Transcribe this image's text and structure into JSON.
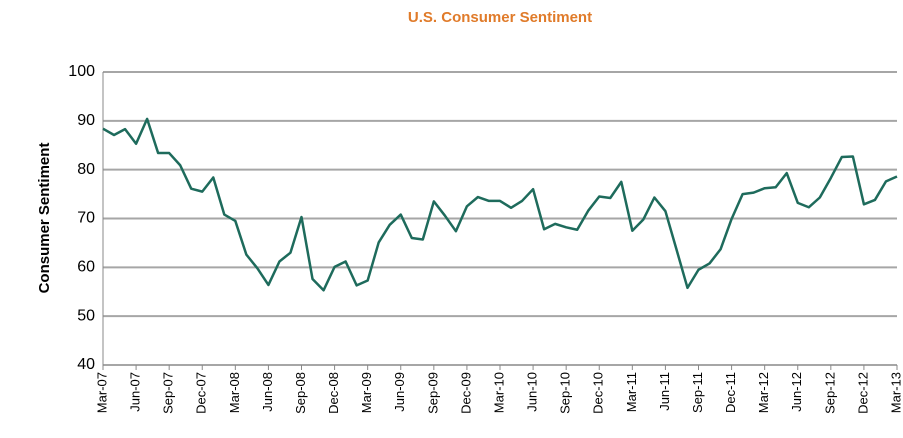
{
  "chart_data": {
    "type": "line",
    "title": "U.S. Consumer Sentiment",
    "y_label": "Consumer Sentiment",
    "categories": [
      "Mar-07",
      null,
      null,
      "Jun-07",
      null,
      null,
      "Sep-07",
      null,
      null,
      "Dec-07",
      null,
      null,
      "Mar-08",
      null,
      null,
      "Jun-08",
      null,
      null,
      "Sep-08",
      null,
      null,
      "Dec-08",
      null,
      null,
      "Mar-09",
      null,
      null,
      "Jun-09",
      null,
      null,
      "Sep-09",
      null,
      null,
      "Dec-09",
      null,
      null,
      "Mar-10",
      null,
      null,
      "Jun-10",
      null,
      null,
      "Sep-10",
      null,
      null,
      "Dec-10",
      null,
      null,
      "Mar-11",
      null,
      null,
      "Jun-11",
      null,
      null,
      "Sep-11",
      null,
      null,
      "Dec-11",
      null,
      null,
      "Mar-12",
      null,
      null,
      "Jun-12",
      null,
      null,
      "Sep-12",
      null,
      null,
      "Dec-12",
      null,
      null,
      "Mar-13"
    ],
    "series": [
      {
        "name": "Consumer Sentiment",
        "color": "#1e6b5c",
        "values": [
          88.4,
          87.1,
          88.3,
          85.3,
          90.4,
          83.4,
          83.4,
          80.9,
          76.1,
          75.5,
          78.4,
          70.8,
          69.5,
          62.6,
          59.8,
          56.4,
          61.2,
          63.0,
          70.3,
          57.6,
          55.3,
          60.1,
          61.2,
          56.3,
          57.3,
          65.1,
          68.7,
          70.8,
          66.0,
          65.7,
          73.5,
          70.6,
          67.4,
          72.5,
          74.4,
          73.6,
          73.6,
          72.2,
          73.6,
          76.0,
          67.8,
          68.9,
          68.2,
          67.7,
          71.6,
          74.5,
          74.2,
          77.5,
          67.5,
          69.8,
          74.3,
          71.5,
          63.7,
          55.8,
          59.5,
          60.8,
          63.7,
          69.9,
          75.0,
          75.3,
          76.2,
          76.4,
          79.3,
          73.2,
          72.3,
          74.3,
          78.3,
          82.6,
          82.7,
          72.9,
          73.8,
          77.6,
          78.6
        ]
      }
    ],
    "ylim": [
      40,
      100
    ],
    "yticks": [
      40,
      50,
      60,
      70,
      80,
      90,
      100
    ],
    "grid": true
  }
}
